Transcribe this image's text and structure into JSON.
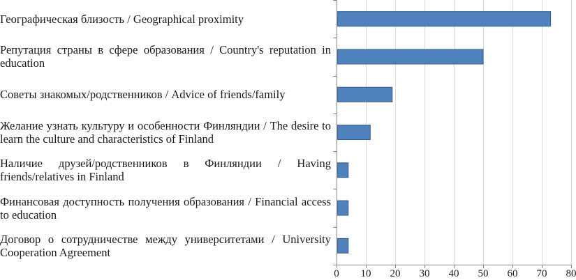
{
  "chart_data": {
    "type": "bar",
    "orientation": "horizontal",
    "categories": [
      "Географическая близость / Geographical proximity",
      "Репутация страны в сфере образования / Country's reputation in education",
      "Советы знакомых/родственников / Advice of friends/family",
      "Желание узнать культуру и особенности Финляндии / The desire to learn the culture and characteristics of Finland",
      "Наличие друзей/родственников в Финляндии / Having friends/relatives in Finland",
      "Финансовая доступность получения образования / Financial access to education",
      "Договор о сотрудничестве между университетами / University Cooperation Agreement"
    ],
    "values": [
      73,
      50,
      19,
      11.5,
      4,
      4,
      4
    ],
    "xlim": [
      0,
      80
    ],
    "xticks": [
      0,
      10,
      20,
      30,
      40,
      50,
      60,
      70,
      80
    ],
    "grid": true,
    "bar_color": "#4f81bd",
    "bar_edge_color": "#385d8a",
    "grid_color": "#d9d9d9",
    "axis_color": "#868686"
  }
}
